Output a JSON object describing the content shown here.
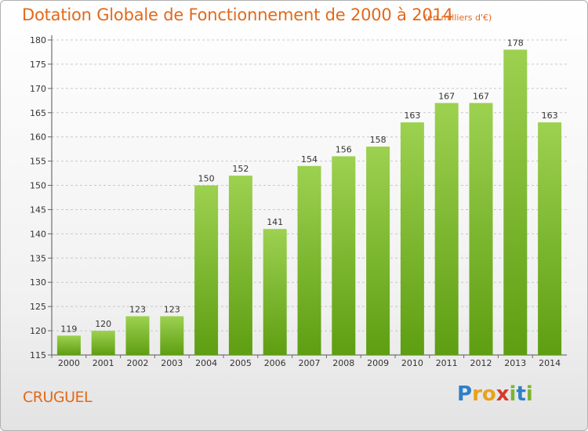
{
  "chart_data": {
    "type": "bar",
    "title": "Dotation Globale de Fonctionnement de 2000 à 2014",
    "subtitle": "(en milliers d'€)",
    "categories": [
      "2000",
      "2001",
      "2002",
      "2003",
      "2004",
      "2005",
      "2006",
      "2007",
      "2008",
      "2009",
      "2010",
      "2011",
      "2012",
      "2013",
      "2014"
    ],
    "values": [
      119,
      120,
      123,
      123,
      150,
      152,
      141,
      154,
      156,
      158,
      163,
      167,
      167,
      178,
      163
    ],
    "ylim": [
      115,
      180
    ],
    "yticks": [
      115,
      120,
      125,
      130,
      135,
      140,
      145,
      150,
      155,
      160,
      165,
      170,
      175,
      180
    ],
    "grid": "horizontal dashed",
    "bar_color_top": "#9dd150",
    "bar_color_bottom": "#5e9e12"
  },
  "footer": {
    "commune": "CRUGUEL"
  },
  "logo": {
    "letters": [
      "P",
      "r",
      "o",
      "x",
      "i",
      "t",
      "i"
    ],
    "colors": [
      "#2f7fc8",
      "#e8a21c",
      "#e8a21c",
      "#d43a2a",
      "#7ab532",
      "#2f7fc8",
      "#7ab532"
    ]
  }
}
